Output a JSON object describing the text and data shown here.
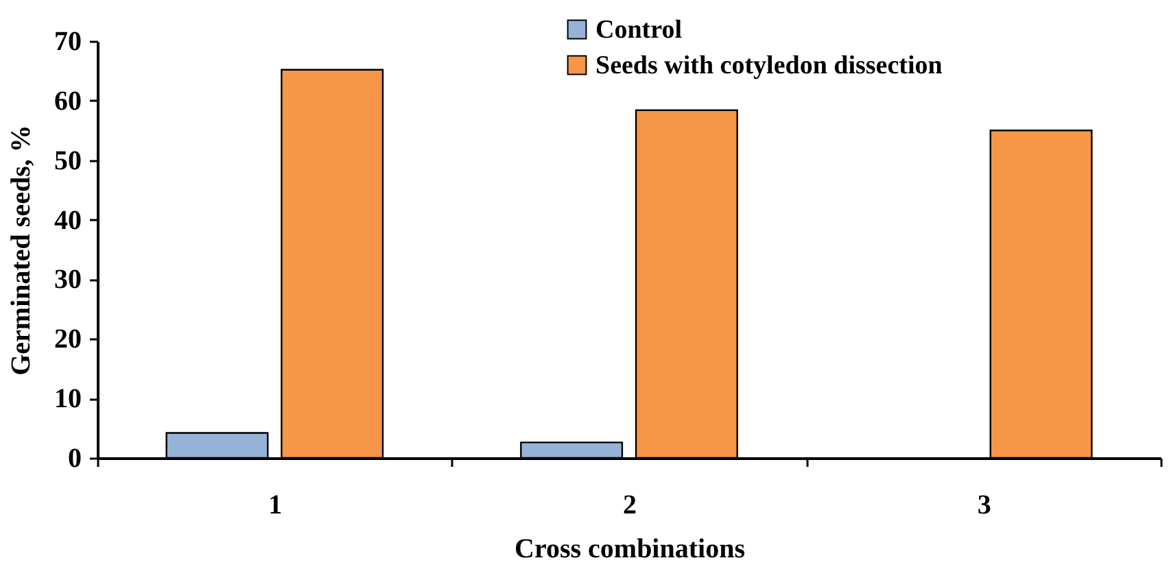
{
  "chart_data": {
    "type": "bar",
    "xlabel": "Cross combinations",
    "ylabel": "Germinated seeds, %",
    "categories": [
      "1",
      "2",
      "3"
    ],
    "series": [
      {
        "name": "Control",
        "color": "#95b3d7",
        "values": [
          4.2,
          2.6,
          null
        ]
      },
      {
        "name": "Seeds with cotyledon dissection",
        "color": "#f79646",
        "values": [
          65.2,
          58.4,
          55.0
        ]
      }
    ],
    "ylim": [
      0,
      70
    ],
    "yticks": [
      0,
      10,
      20,
      30,
      40,
      50,
      60,
      70
    ],
    "grid": false,
    "legend": "top right"
  }
}
